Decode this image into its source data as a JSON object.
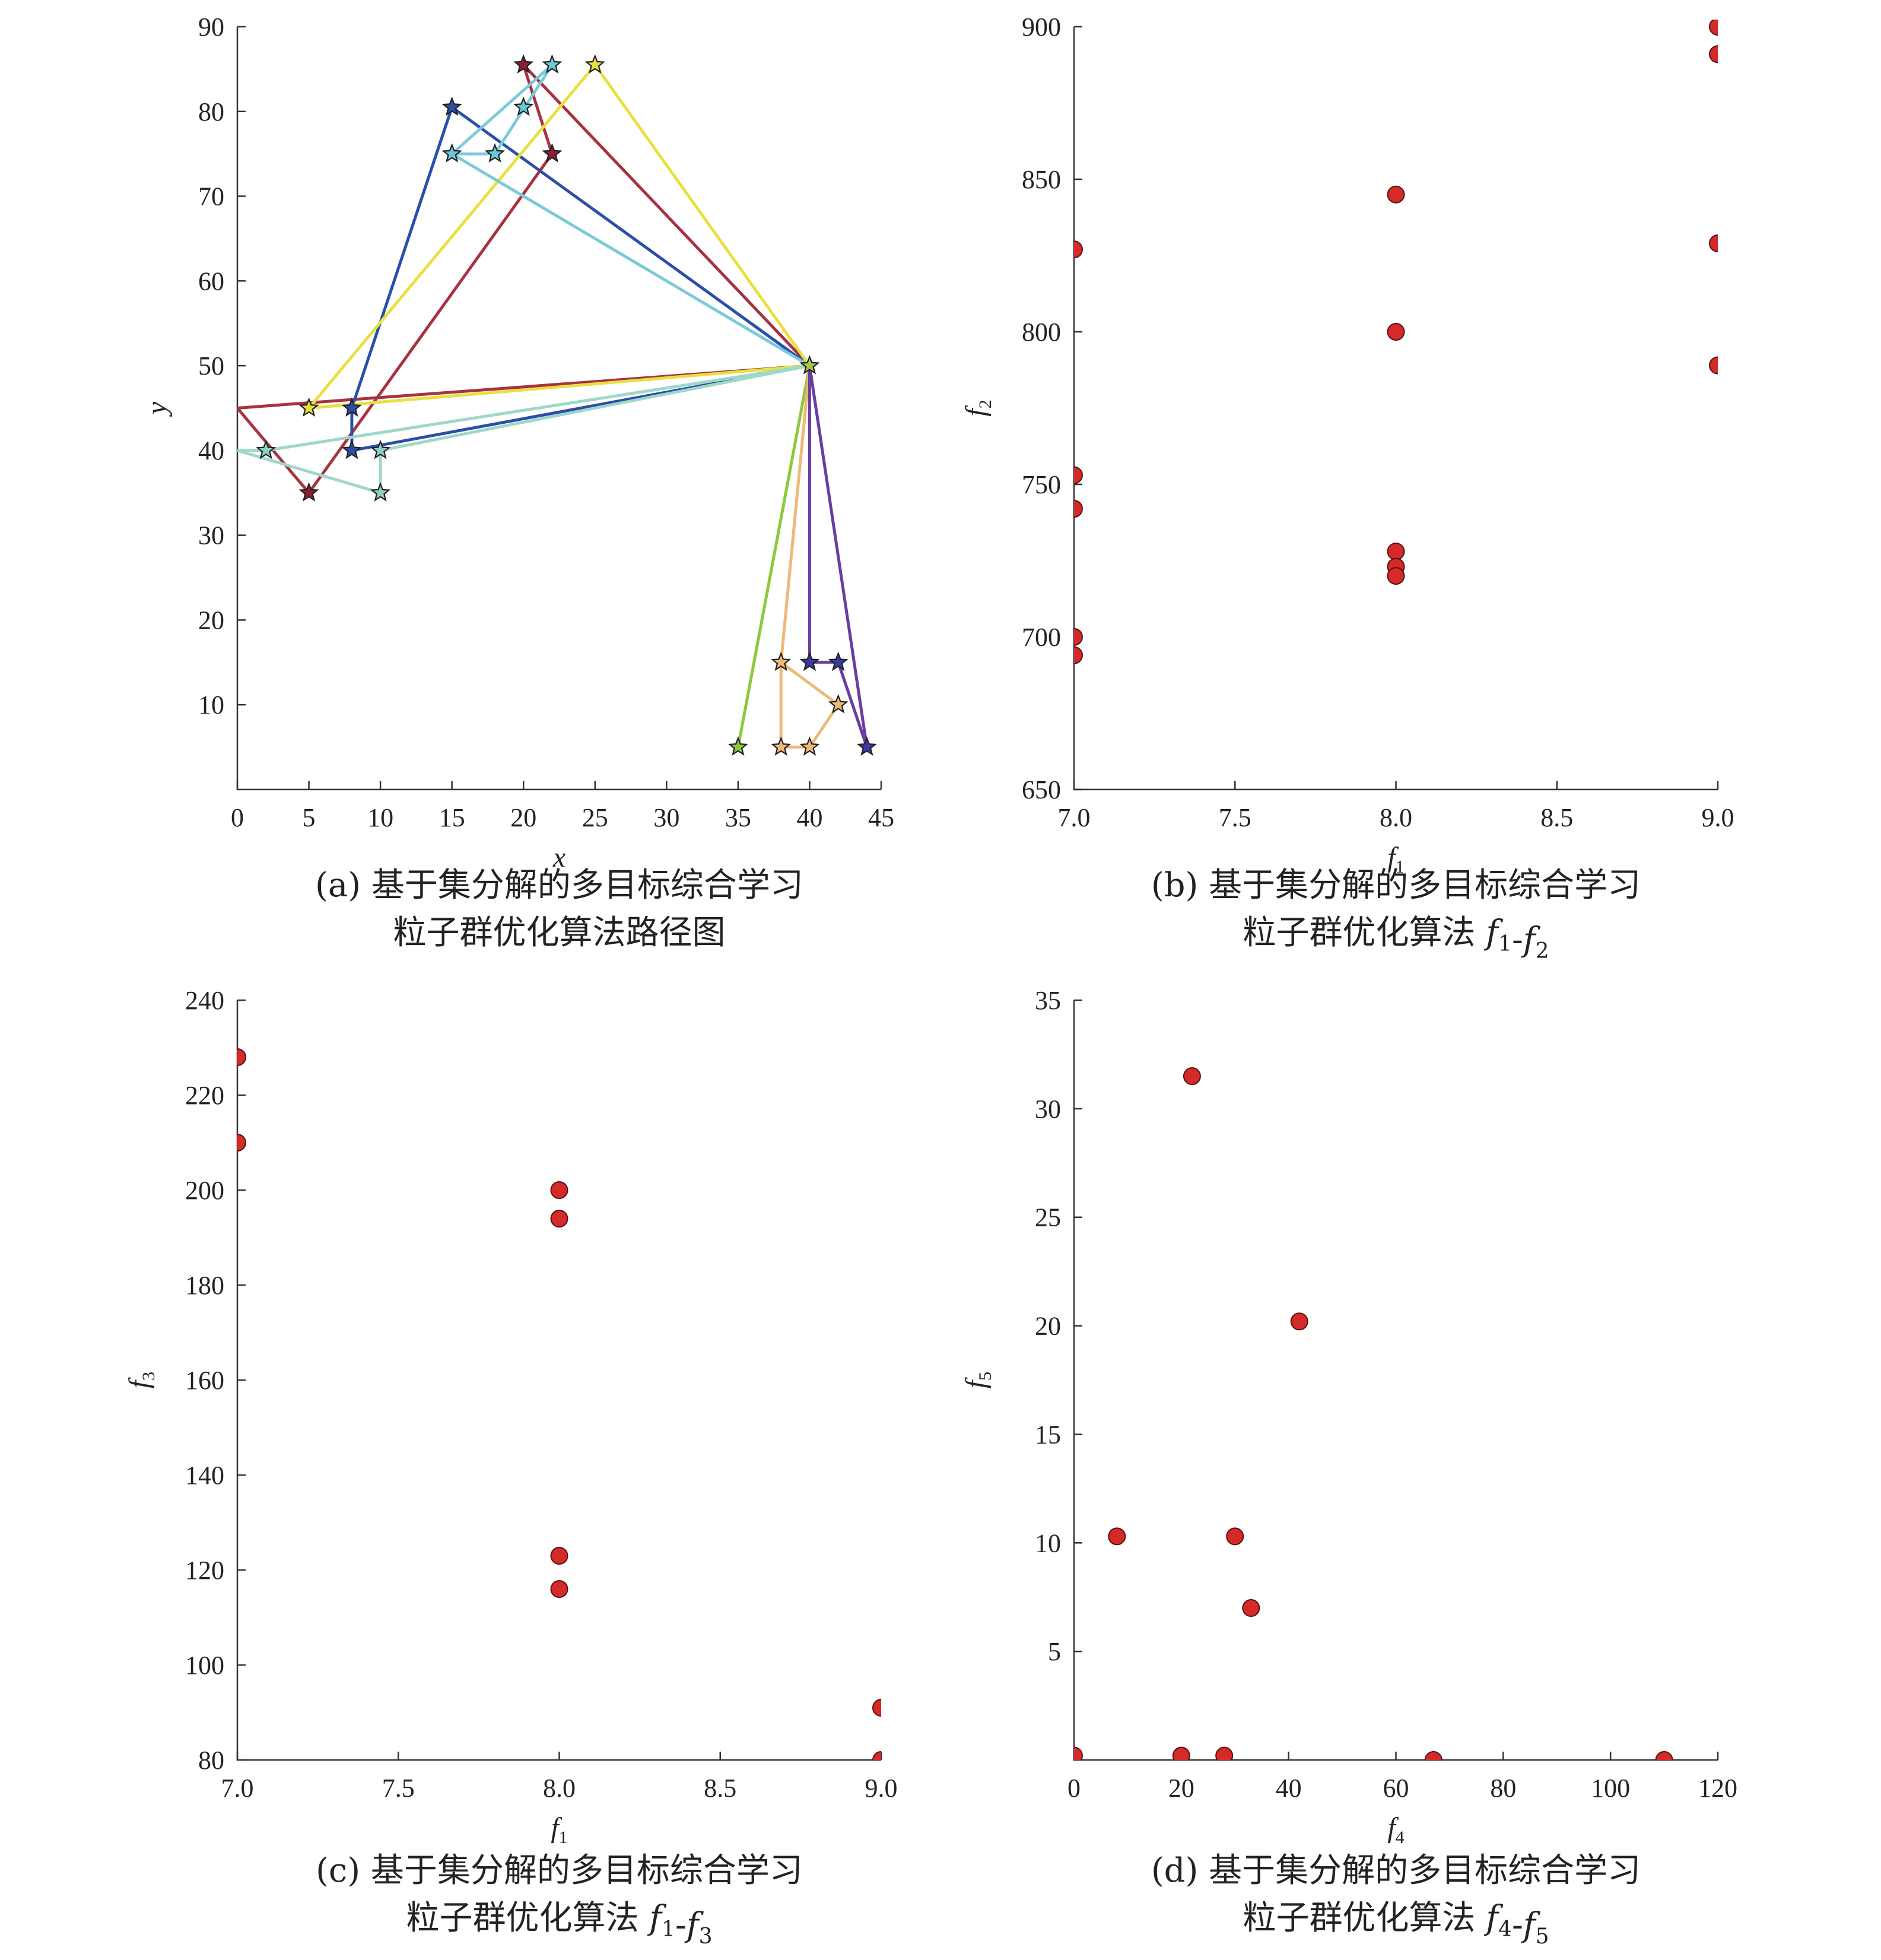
{
  "chart_data": [
    {
      "type": "line",
      "xlabel": "x",
      "ylabel": "y",
      "xlim": [
        0,
        45
      ],
      "ylim": [
        0,
        90
      ],
      "xticks": [
        "0",
        "5",
        "10",
        "15",
        "20",
        "25",
        "30",
        "35",
        "40",
        "45"
      ],
      "yticks": [
        "10",
        "20",
        "30",
        "40",
        "50",
        "60",
        "70",
        "80",
        "90"
      ],
      "caption": [
        "(a) 基于集分解的多目标综合学习",
        "粒子群优化算法路径图"
      ],
      "routes": [
        {
          "color": "#a83240",
          "points": [
            [
              40,
              50
            ],
            [
              0,
              45
            ],
            [
              5,
              35
            ],
            [
              22,
              75
            ],
            [
              20,
              85.5
            ],
            [
              40,
              50
            ]
          ]
        },
        {
          "color": "#2b4fa8",
          "points": [
            [
              40,
              50
            ],
            [
              8,
              40
            ],
            [
              8,
              45
            ],
            [
              15,
              80.5
            ],
            [
              40,
              50
            ]
          ]
        },
        {
          "color": "#e8e040",
          "points": [
            [
              40,
              50
            ],
            [
              5,
              45
            ],
            [
              25,
              85.5
            ],
            [
              40,
              50
            ]
          ]
        },
        {
          "color": "#7ccad8",
          "points": [
            [
              40,
              50
            ],
            [
              15,
              75
            ],
            [
              18,
              75
            ],
            [
              22,
              85.5
            ],
            [
              15,
              75
            ]
          ]
        },
        {
          "color": "#9ed8c8",
          "points": [
            [
              40,
              50
            ],
            [
              10,
              40
            ],
            [
              10,
              35
            ],
            [
              0,
              40
            ],
            [
              2,
              40
            ],
            [
              40,
              50
            ]
          ]
        },
        {
          "color": "#8cc83c",
          "points": [
            [
              40,
              50
            ],
            [
              35,
              5
            ]
          ]
        },
        {
          "color": "#f0b878",
          "points": [
            [
              40,
              50
            ],
            [
              38,
              15
            ],
            [
              42,
              10
            ],
            [
              40,
              5
            ],
            [
              38,
              5
            ],
            [
              38,
              15
            ]
          ]
        },
        {
          "color": "#6a3ca0",
          "points": [
            [
              40,
              50
            ],
            [
              40,
              15
            ],
            [
              42,
              15
            ],
            [
              44,
              5
            ],
            [
              40,
              50
            ]
          ]
        }
      ],
      "stars": [
        {
          "xy": [
            40,
            50
          ],
          "color": "#a6c840"
        },
        {
          "xy": [
            20,
            85.5
          ],
          "color": "#8a2030"
        },
        {
          "xy": [
            22,
            85.5
          ],
          "color": "#6cc8d8"
        },
        {
          "xy": [
            25,
            85.5
          ],
          "color": "#e8e040"
        },
        {
          "xy": [
            15,
            80.5
          ],
          "color": "#2b4fa8"
        },
        {
          "xy": [
            20,
            80.5
          ],
          "color": "#6cc8d8"
        },
        {
          "xy": [
            15,
            75
          ],
          "color": "#6cc8d8"
        },
        {
          "xy": [
            18,
            75
          ],
          "color": "#6cc8d8"
        },
        {
          "xy": [
            22,
            75
          ],
          "color": "#8a2030"
        },
        {
          "xy": [
            5,
            45
          ],
          "color": "#e8e040"
        },
        {
          "xy": [
            8,
            45
          ],
          "color": "#2b4fa8"
        },
        {
          "xy": [
            8,
            40
          ],
          "color": "#2b4fa8"
        },
        {
          "xy": [
            2,
            40
          ],
          "color": "#8cd0c0"
        },
        {
          "xy": [
            10,
            40
          ],
          "color": "#8cd0c0"
        },
        {
          "xy": [
            10,
            35
          ],
          "color": "#8cd0c0"
        },
        {
          "xy": [
            5,
            35
          ],
          "color": "#8a2030"
        },
        {
          "xy": [
            38,
            15
          ],
          "color": "#f0b878"
        },
        {
          "xy": [
            40,
            15
          ],
          "color": "#3a3aa0"
        },
        {
          "xy": [
            42,
            15
          ],
          "color": "#3a3aa0"
        },
        {
          "xy": [
            42,
            10
          ],
          "color": "#f0b878"
        },
        {
          "xy": [
            35,
            5
          ],
          "color": "#8cc83c"
        },
        {
          "xy": [
            38,
            5
          ],
          "color": "#f0b878"
        },
        {
          "xy": [
            40,
            5
          ],
          "color": "#f0b878"
        },
        {
          "xy": [
            44,
            5
          ],
          "color": "#3a3aa0"
        }
      ]
    },
    {
      "type": "scatter",
      "xlabel": "f",
      "xlabel_sub": "1",
      "ylabel": "f",
      "ylabel_sub": "2",
      "xlim": [
        7,
        9
      ],
      "ylim": [
        650,
        900
      ],
      "xticks": [
        "7.0",
        "7.5",
        "8.0",
        "8.5",
        "9.0"
      ],
      "yticks": [
        "650",
        "700",
        "750",
        "800",
        "850",
        "900"
      ],
      "caption_prefix": "(b) 基于集分解的多目标综合学习",
      "caption_line2": "粒子群优化算法 ",
      "caption_vars": [
        {
          "v": "f",
          "s": "1"
        },
        {
          "v": "f",
          "s": "2"
        }
      ],
      "x": [
        7,
        7,
        7,
        7,
        7,
        8,
        8,
        8,
        8,
        8,
        9,
        9,
        9,
        9
      ],
      "y": [
        827,
        753,
        742,
        700,
        694,
        845,
        800,
        728,
        723,
        720,
        900,
        891,
        829,
        789
      ],
      "point_color": "#d42a2a"
    },
    {
      "type": "scatter",
      "xlabel": "f",
      "xlabel_sub": "1",
      "ylabel": "f",
      "ylabel_sub": "3",
      "xlim": [
        7,
        9
      ],
      "ylim": [
        80,
        240
      ],
      "xticks": [
        "7.0",
        "7.5",
        "8.0",
        "8.5",
        "9.0"
      ],
      "yticks": [
        "80",
        "100",
        "120",
        "140",
        "160",
        "180",
        "200",
        "220",
        "240"
      ],
      "caption_prefix": "(c) 基于集分解的多目标综合学习",
      "caption_line2": "粒子群优化算法 ",
      "caption_vars": [
        {
          "v": "f",
          "s": "1"
        },
        {
          "v": "f",
          "s": "3"
        }
      ],
      "x": [
        7,
        7,
        8,
        8,
        8,
        8,
        9,
        9
      ],
      "y": [
        228,
        210,
        200,
        194,
        123,
        116,
        91,
        80
      ],
      "point_color": "#d42a2a"
    },
    {
      "type": "scatter",
      "xlabel": "f",
      "xlabel_sub": "4",
      "ylabel": "f",
      "ylabel_sub": "5",
      "xlim": [
        0,
        120
      ],
      "ylim": [
        0,
        35
      ],
      "xticks": [
        "0",
        "20",
        "40",
        "60",
        "80",
        "100",
        "120"
      ],
      "yticks": [
        "5",
        "10",
        "15",
        "20",
        "25",
        "30",
        "35"
      ],
      "caption_prefix": "(d) 基于集分解的多目标综合学习",
      "caption_line2": "粒子群优化算法 ",
      "caption_vars": [
        {
          "v": "f",
          "s": "4"
        },
        {
          "v": "f",
          "s": "5"
        }
      ],
      "x": [
        22,
        42,
        8,
        30,
        33,
        0,
        20,
        28,
        67,
        110
      ],
      "y": [
        31.5,
        20.2,
        10.3,
        10.3,
        7,
        0.2,
        0.2,
        0.2,
        0,
        0
      ],
      "point_color": "#d42a2a"
    }
  ]
}
